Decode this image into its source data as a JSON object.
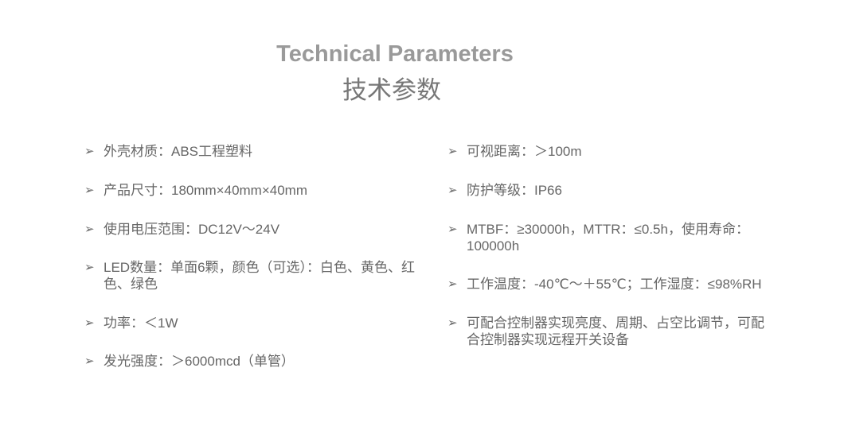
{
  "title_en": "Technical Parameters",
  "title_cn": "技术参数",
  "bullet_icon": "arrowhead-right",
  "left": [
    "外壳材质：ABS工程塑料",
    "产品尺寸：180mm×40mm×40mm",
    "使用电压范围：DC12V～24V",
    "LED数量：单面6颗，颜色（可选）：白色、黄色、红色、绿色",
    "功率：＜1W",
    "发光强度：＞6000mcd（单管）"
  ],
  "right": [
    "可视距离：＞100m",
    "防护等级：IP66",
    "MTBF：≥30000h，MTTR：≤0.5h，使用寿命：100000h",
    "工作温度：-40℃～＋55℃；工作湿度：≤98%RH",
    "可配合控制器实现亮度、周期、占空比调节，可配合控制器实现远程开关设备"
  ]
}
